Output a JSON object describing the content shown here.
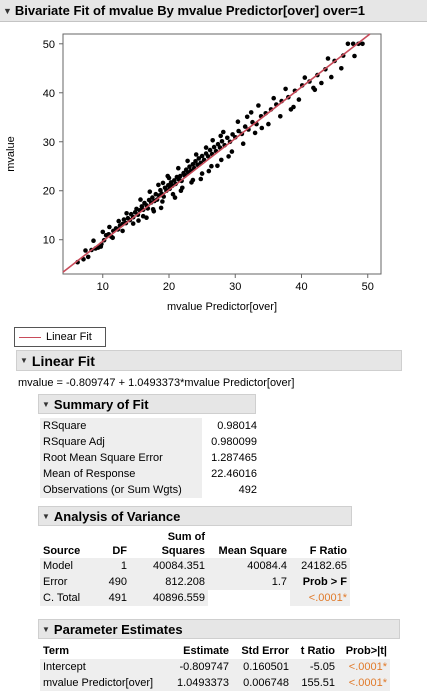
{
  "title_bar": {
    "toggle_icon": "disclosure-triangle-icon",
    "title": "Bivariate Fit of mvalue By mvalue Predictor[over] over=1"
  },
  "chart_data": {
    "type": "scatter",
    "xlabel": "mvalue Predictor[over]",
    "ylabel": "mvalue",
    "xlim": [
      4,
      52
    ],
    "ylim": [
      3,
      52
    ],
    "x_ticks": [
      "10",
      "20",
      "30",
      "40",
      "50"
    ],
    "y_ticks": [
      "10",
      "20",
      "30",
      "40",
      "50"
    ],
    "grid": false,
    "point_color": "#000000",
    "fit_line": {
      "name": "Linear Fit",
      "intercept": -0.809747,
      "slope": 1.0493373,
      "color": "#c84b5a"
    },
    "points": [
      [
        6.2,
        5.4
      ],
      [
        7.1,
        6.0
      ],
      [
        7.8,
        6.5
      ],
      [
        8.3,
        7.9
      ],
      [
        8.9,
        8.2
      ],
      [
        9.3,
        8.4
      ],
      [
        9.8,
        9.1
      ],
      [
        10.2,
        9.9
      ],
      [
        10.5,
        10.9
      ],
      [
        10.9,
        11.1
      ],
      [
        11.3,
        10.6
      ],
      [
        11.6,
        11.8
      ],
      [
        12.0,
        12.3
      ],
      [
        12.3,
        12.1
      ],
      [
        12.6,
        12.9
      ],
      [
        13.0,
        13.2
      ],
      [
        13.2,
        14.1
      ],
      [
        13.5,
        13.4
      ],
      [
        13.8,
        14.4
      ],
      [
        14.1,
        14.0
      ],
      [
        14.3,
        15.2
      ],
      [
        14.6,
        14.6
      ],
      [
        14.9,
        15.6
      ],
      [
        15.1,
        16.3
      ],
      [
        15.3,
        15.1
      ],
      [
        15.6,
        16.0
      ],
      [
        15.9,
        16.8
      ],
      [
        16.1,
        16.1
      ],
      [
        16.3,
        17.5
      ],
      [
        16.6,
        17.0
      ],
      [
        16.8,
        16.4
      ],
      [
        17.0,
        18.1
      ],
      [
        17.3,
        17.6
      ],
      [
        17.5,
        18.6
      ],
      [
        17.8,
        17.9
      ],
      [
        18.0,
        19.3
      ],
      [
        18.2,
        18.2
      ],
      [
        18.5,
        19.0
      ],
      [
        18.7,
        20.1
      ],
      [
        18.9,
        19.4
      ],
      [
        19.2,
        18.8
      ],
      [
        19.4,
        20.6
      ],
      [
        19.6,
        20.0
      ],
      [
        19.9,
        21.1
      ],
      [
        20.1,
        20.4
      ],
      [
        20.3,
        21.7
      ],
      [
        20.5,
        21.0
      ],
      [
        20.8,
        22.1
      ],
      [
        21.0,
        21.4
      ],
      [
        21.2,
        22.8
      ],
      [
        21.5,
        22.3
      ],
      [
        21.7,
        23.0
      ],
      [
        21.9,
        22.0
      ],
      [
        22.2,
        23.6
      ],
      [
        22.4,
        23.1
      ],
      [
        22.6,
        24.3
      ],
      [
        22.9,
        23.7
      ],
      [
        23.1,
        24.9
      ],
      [
        23.3,
        24.1
      ],
      [
        23.6,
        25.4
      ],
      [
        23.8,
        24.6
      ],
      [
        24.0,
        26.0
      ],
      [
        24.3,
        25.3
      ],
      [
        24.5,
        26.6
      ],
      [
        24.8,
        25.7
      ],
      [
        25.0,
        27.1
      ],
      [
        25.3,
        26.3
      ],
      [
        25.6,
        27.6
      ],
      [
        25.9,
        27.0
      ],
      [
        26.2,
        28.3
      ],
      [
        26.5,
        27.5
      ],
      [
        26.8,
        28.9
      ],
      [
        27.1,
        28.1
      ],
      [
        27.4,
        29.5
      ],
      [
        27.7,
        28.8
      ],
      [
        28.0,
        30.1
      ],
      [
        28.4,
        29.3
      ],
      [
        28.8,
        30.8
      ],
      [
        29.2,
        30.0
      ],
      [
        29.6,
        31.5
      ],
      [
        30.0,
        30.9
      ],
      [
        30.5,
        32.2
      ],
      [
        31.0,
        31.6
      ],
      [
        31.5,
        33.1
      ],
      [
        32.0,
        32.5
      ],
      [
        32.6,
        34.0
      ],
      [
        33.2,
        33.6
      ],
      [
        33.9,
        35.2
      ],
      [
        34.6,
        35.8
      ],
      [
        35.4,
        36.6
      ],
      [
        36.2,
        37.6
      ],
      [
        37.0,
        38.3
      ],
      [
        38.0,
        39.1
      ],
      [
        39.0,
        40.4
      ],
      [
        40.1,
        41.5
      ],
      [
        41.2,
        42.3
      ],
      [
        42.4,
        43.6
      ],
      [
        43.6,
        44.8
      ],
      [
        45.0,
        46.5
      ],
      [
        46.3,
        47.6
      ],
      [
        47.0,
        50.0
      ],
      [
        47.8,
        50.0
      ],
      [
        48.6,
        50.0
      ],
      [
        49.2,
        50.0
      ],
      [
        44.5,
        43.2
      ],
      [
        42.0,
        40.6
      ],
      [
        38.8,
        37.1
      ],
      [
        35.0,
        33.6
      ],
      [
        33.0,
        31.8
      ],
      [
        31.2,
        29.6
      ],
      [
        29.5,
        28.0
      ],
      [
        27.9,
        26.3
      ],
      [
        26.4,
        25.0
      ],
      [
        25.0,
        23.5
      ],
      [
        23.6,
        22.2
      ],
      [
        22.0,
        20.6
      ],
      [
        20.6,
        19.3
      ],
      [
        19.0,
        17.8
      ],
      [
        17.6,
        16.2
      ],
      [
        16.1,
        14.8
      ],
      [
        14.6,
        13.3
      ],
      [
        13.0,
        11.8
      ],
      [
        11.5,
        10.4
      ],
      [
        9.7,
        8.6
      ],
      [
        21.4,
        24.6
      ],
      [
        22.8,
        26.1
      ],
      [
        24.1,
        27.4
      ],
      [
        19.8,
        23.0
      ],
      [
        18.4,
        21.2
      ],
      [
        17.1,
        19.8
      ],
      [
        15.7,
        18.2
      ],
      [
        26.6,
        30.3
      ],
      [
        28.2,
        32.0
      ],
      [
        30.4,
        34.1
      ],
      [
        32.4,
        36.0
      ],
      [
        24.8,
        22.4
      ],
      [
        20.9,
        18.6
      ],
      [
        18.8,
        16.5
      ],
      [
        16.6,
        14.5
      ],
      [
        27.3,
        25.1
      ],
      [
        29.0,
        27.0
      ],
      [
        34.0,
        32.8
      ],
      [
        36.8,
        35.2
      ],
      [
        39.6,
        38.6
      ],
      [
        41.8,
        41.0
      ],
      [
        43.0,
        42.0
      ],
      [
        46.0,
        45.0
      ],
      [
        48.0,
        47.5
      ],
      [
        20.0,
        22.6
      ],
      [
        21.8,
        20.0
      ],
      [
        23.4,
        21.7
      ],
      [
        19.1,
        21.6
      ],
      [
        17.7,
        15.8
      ],
      [
        15.4,
        13.9
      ],
      [
        13.6,
        15.4
      ],
      [
        12.4,
        13.8
      ],
      [
        11.0,
        12.6
      ],
      [
        10.0,
        11.6
      ],
      [
        8.6,
        9.8
      ],
      [
        7.4,
        7.8
      ],
      [
        25.6,
        28.8
      ],
      [
        26.0,
        24.0
      ],
      [
        27.8,
        31.2
      ],
      [
        31.8,
        35.1
      ],
      [
        33.5,
        37.4
      ],
      [
        35.8,
        38.9
      ],
      [
        37.6,
        40.8
      ],
      [
        38.4,
        36.6
      ],
      [
        40.5,
        43.1
      ],
      [
        44.0,
        47.0
      ]
    ]
  },
  "legend": {
    "label": "Linear Fit"
  },
  "linear_fit": {
    "header": "Linear Fit",
    "toggle_icon": "disclosure-triangle-icon",
    "equation": "mvalue = -0.809747 + 1.0493373*mvalue Predictor[over]"
  },
  "summary_of_fit": {
    "header": "Summary of Fit",
    "rows": [
      {
        "label": "RSquare",
        "value": "0.98014"
      },
      {
        "label": "RSquare Adj",
        "value": "0.980099"
      },
      {
        "label": "Root Mean Square Error",
        "value": "1.287465"
      },
      {
        "label": "Mean of Response",
        "value": "22.46016"
      },
      {
        "label": "Observations (or Sum Wgts)",
        "value": "492"
      }
    ]
  },
  "anova": {
    "header": "Analysis of Variance",
    "columns": {
      "source": "Source",
      "df": "DF",
      "ss_top": "Sum of",
      "ss": "Squares",
      "ms": "Mean Square",
      "f": "F Ratio"
    },
    "rows": [
      {
        "source": "Model",
        "df": "1",
        "ss": "40084.351",
        "ms": "40084.4",
        "f": "24182.65"
      },
      {
        "source": "Error",
        "df": "490",
        "ss": "812.208",
        "ms": "1.7",
        "f": "Prob > F"
      },
      {
        "source": "C. Total",
        "df": "491",
        "ss": "40896.559",
        "ms": "",
        "f": "<.0001*"
      }
    ]
  },
  "parameter_estimates": {
    "header": "Parameter Estimates",
    "columns": {
      "term": "Term",
      "estimate": "Estimate",
      "std_error": "Std Error",
      "t_ratio": "t Ratio",
      "prob": "Prob>|t|"
    },
    "rows": [
      {
        "term": "Intercept",
        "estimate": "-0.809747",
        "std_error": "0.160501",
        "t_ratio": "-5.05",
        "prob": "<.0001*"
      },
      {
        "term": "mvalue Predictor[over]",
        "estimate": "1.0493373",
        "std_error": "0.006748",
        "t_ratio": "155.51",
        "prob": "<.0001*"
      }
    ]
  }
}
